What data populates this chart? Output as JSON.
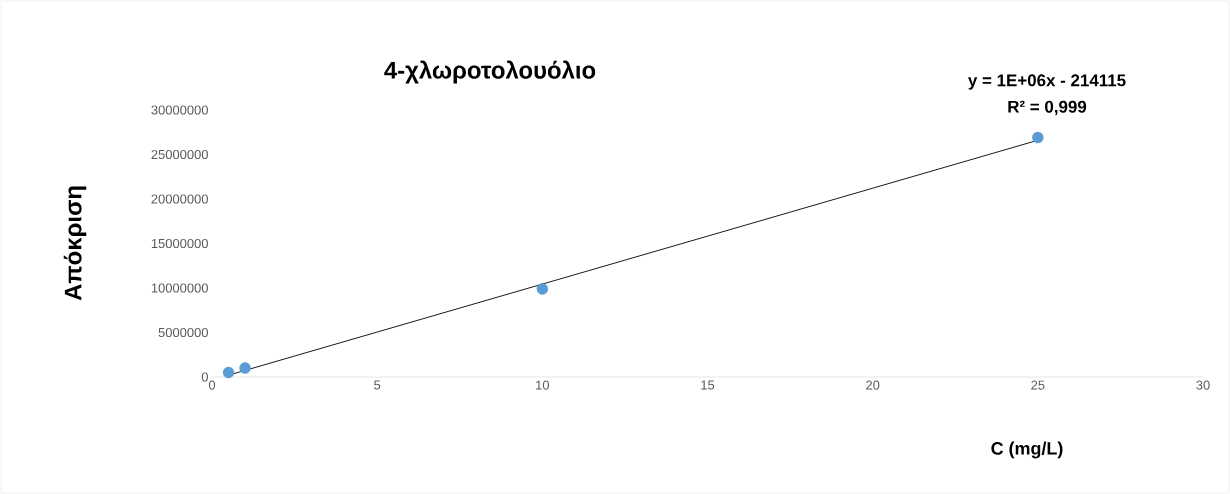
{
  "chart_data": {
    "type": "scatter",
    "title": "4-χλωροτολουόλιο",
    "xlabel": "C (mg/L)",
    "ylabel": "Απόκριση",
    "annotations": [
      "y = 1E+06x - 214115",
      "R² = 0,999"
    ],
    "series": [
      {
        "color": "#5b9bd5",
        "marker": "circle",
        "x": [
          0.5,
          1,
          10,
          25
        ],
        "values": [
          500000,
          1000000,
          9900000,
          26900000
        ]
      },
      {
        "type": "line",
        "color": "#000000",
        "marker": "none",
        "x": [
          0.5,
          25
        ],
        "values": [
          200000,
          26600000
        ]
      }
    ],
    "xlim": [
      0,
      30
    ],
    "xticks": [
      0,
      5,
      10,
      15,
      20,
      25,
      30
    ],
    "ylim": [
      0,
      30000000
    ],
    "yticks": [
      0,
      5000000,
      10000000,
      15000000,
      20000000,
      25000000,
      30000000
    ],
    "grid": false
  }
}
